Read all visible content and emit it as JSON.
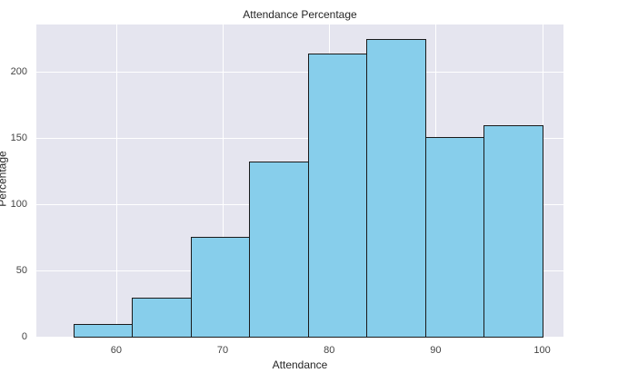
{
  "chart_data": {
    "type": "bar",
    "subtype": "histogram",
    "title": "Attendance Percentage",
    "xlabel": "Attendance",
    "ylabel": "Percentage",
    "bin_edges": [
      56.0,
      61.5,
      67.0,
      72.5,
      78.0,
      83.5,
      89.0,
      94.5,
      100.0
    ],
    "values": [
      10,
      30,
      76,
      133,
      214,
      225,
      151,
      160
    ],
    "categories": [
      "56-61.5",
      "61.5-67",
      "67-72.5",
      "72.5-78",
      "78-83.5",
      "83.5-89",
      "89-94.5",
      "94.5-100"
    ],
    "xlim": [
      52.5,
      102
    ],
    "ylim": [
      0,
      236
    ],
    "xticks": [
      "60",
      "70",
      "80",
      "90",
      "100"
    ],
    "yticks": [
      "0",
      "50",
      "100",
      "150",
      "200"
    ],
    "grid": true,
    "legend": null,
    "colors": {
      "bar_fill": "#87ceeb",
      "bar_edge": "#1a1a1a",
      "plot_bg": "#e5e5ef",
      "grid": "#ffffff"
    }
  }
}
